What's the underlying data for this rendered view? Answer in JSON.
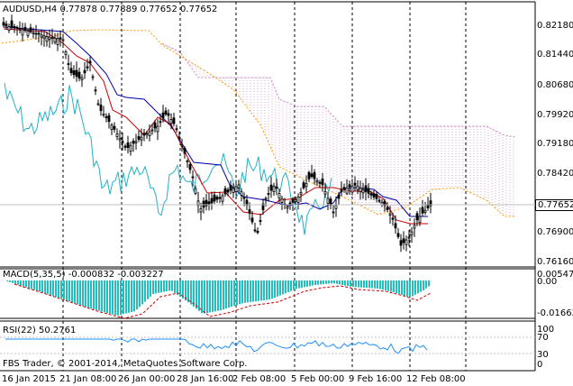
{
  "main": {
    "header": "AUDUSD,H4  0.77878 0.77889 0.77652 0.77652",
    "price_labels": [
      "0.82180",
      "0.81440",
      "0.80680",
      "0.79920",
      "0.79180",
      "0.78420",
      "0.76900",
      "0.76160"
    ],
    "current_price": "0.77652"
  },
  "macd": {
    "header": "MACD(5,35,5) -0.000832 -0.003227",
    "scale_labels": [
      "0.00547",
      "0.00",
      "-0.016625"
    ]
  },
  "rsi": {
    "header": "RSI(22) 50.2761",
    "scale_labels": [
      "100",
      "70",
      "30",
      "0"
    ]
  },
  "copyright": "FBS Trader, © 2001-2014, MetaQuotes Software Corp.",
  "time_labels": [
    "16 Jan 2015",
    "21 Jan 08:00",
    "26 Jan 00:00",
    "28 Jan 16:00",
    "2 Feb 08:00",
    "5 Feb 00:00",
    "9 Feb 16:00",
    "12 Feb 08:00"
  ],
  "colors": {
    "background": "#ffffff",
    "candles": "#000000",
    "tenkan": "#cc0000",
    "kijun": "#0000aa",
    "chikou": "#20b2c8",
    "senkou_a": "#ff9900",
    "senkou_b": "#cc88cc",
    "macd_hist": "#20c0c0",
    "macd_signal": "#cc0000",
    "rsi_line": "#1e90ff",
    "separator": "#000000"
  }
}
